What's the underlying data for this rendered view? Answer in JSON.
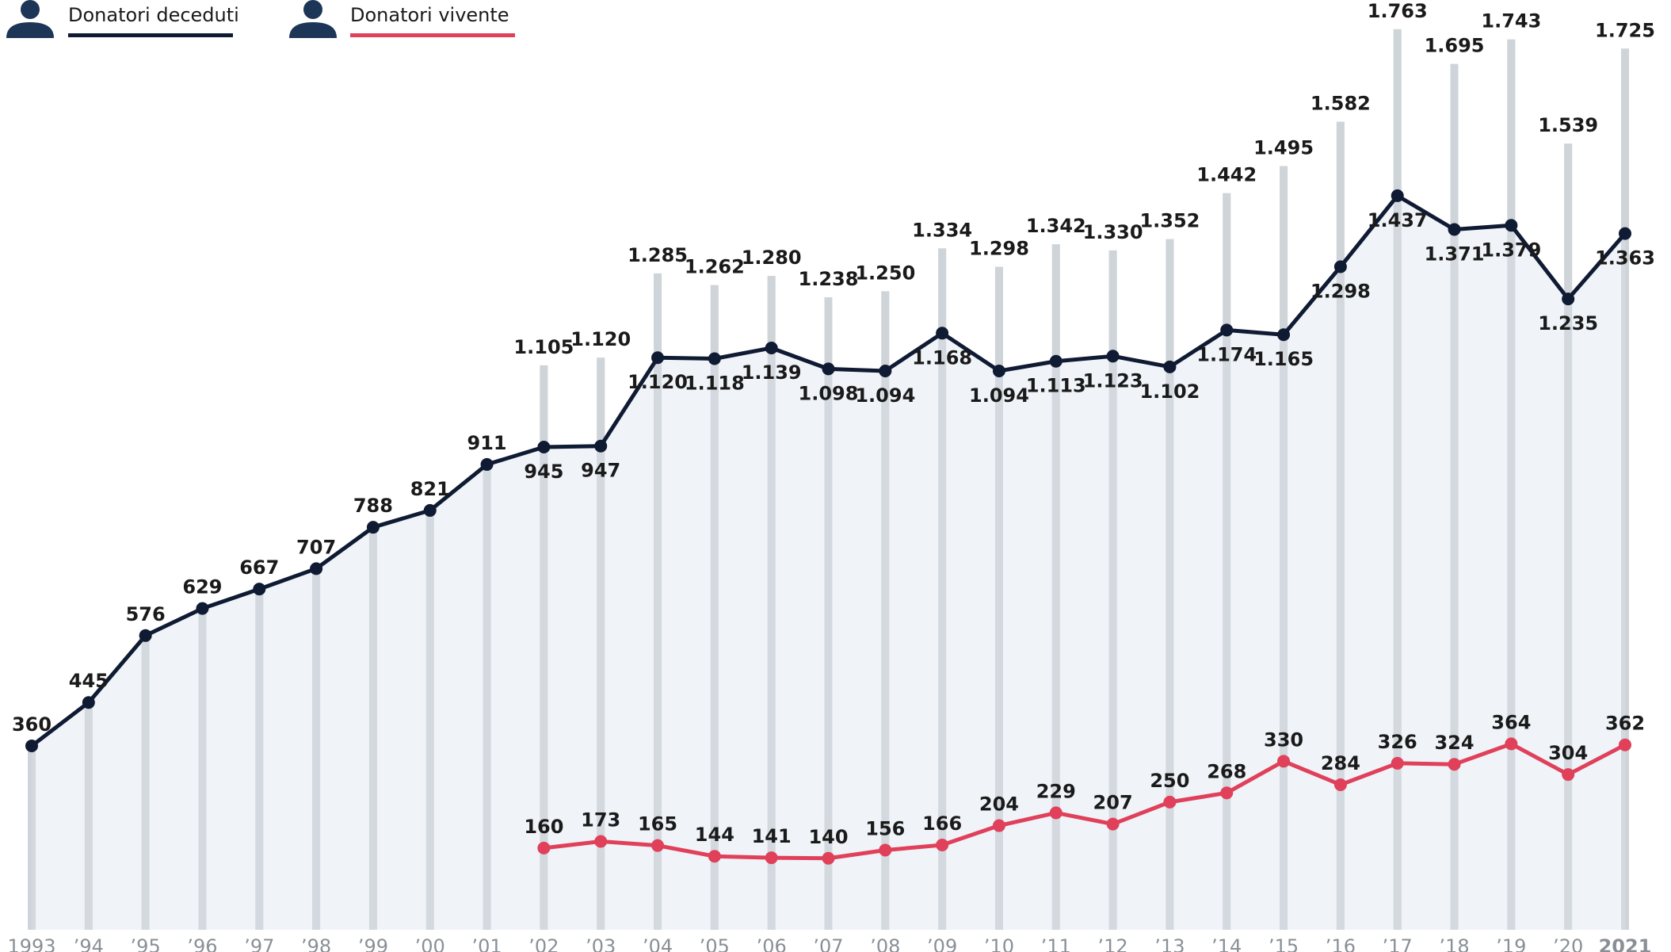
{
  "chart_data": {
    "type": "line",
    "categories": [
      "1993",
      "’94",
      "’95",
      "’96",
      "’97",
      "’98",
      "’99",
      "’00",
      "’01",
      "’02",
      "’03",
      "’04",
      "’05",
      "’06",
      "’07",
      "’08",
      "’09",
      "’10",
      "’11",
      "’12",
      "’13",
      "’14",
      "’15",
      "’16",
      "’17",
      "’18",
      "’19",
      "’20",
      "2021"
    ],
    "ylim": [
      0,
      1800
    ],
    "series": [
      {
        "name": "Donatori deceduti",
        "color": "#0f1a33",
        "values": [
          360,
          445,
          576,
          629,
          667,
          707,
          788,
          821,
          911,
          945,
          947,
          1120,
          1118,
          1139,
          1098,
          1094,
          1168,
          1094,
          1113,
          1123,
          1102,
          1174,
          1165,
          1298,
          1437,
          1371,
          1379,
          1235,
          1363
        ],
        "value_labels": [
          "360",
          "445",
          "576",
          "629",
          "667",
          "707",
          "788",
          "821",
          "911",
          "945",
          "947",
          "1.120",
          "1.118",
          "1.139",
          "1.098",
          "1.094",
          "1.168",
          "1.094",
          "1.113",
          "1.123",
          "1.102",
          "1.174",
          "1.165",
          "1.298",
          "1.437",
          "1.371",
          "1.379",
          "1.235",
          "1.363"
        ]
      },
      {
        "name": "Donatori vivente",
        "color": "#e0405a",
        "values": [
          null,
          null,
          null,
          null,
          null,
          null,
          null,
          null,
          null,
          160,
          173,
          165,
          144,
          141,
          140,
          156,
          166,
          204,
          229,
          207,
          250,
          268,
          330,
          284,
          326,
          324,
          364,
          304,
          362
        ]
      }
    ],
    "totals": {
      "color": "#cfd4d9",
      "values": [
        360,
        445,
        576,
        629,
        667,
        707,
        788,
        821,
        911,
        1105,
        1120,
        1285,
        1262,
        1280,
        1238,
        1250,
        1334,
        1298,
        1342,
        1330,
        1352,
        1442,
        1495,
        1582,
        1763,
        1695,
        1743,
        1539,
        1725
      ],
      "value_labels": [
        null,
        null,
        null,
        null,
        null,
        null,
        null,
        null,
        null,
        "1.105",
        "1.120",
        "1.285",
        "1.262",
        "1.280",
        "1.238",
        "1.250",
        "1.334",
        "1.298",
        "1.342",
        "1.330",
        "1.352",
        "1.442",
        "1.495",
        "1.582",
        "1.763",
        "1.695",
        "1.743",
        "1.539",
        "1.725"
      ]
    }
  }
}
